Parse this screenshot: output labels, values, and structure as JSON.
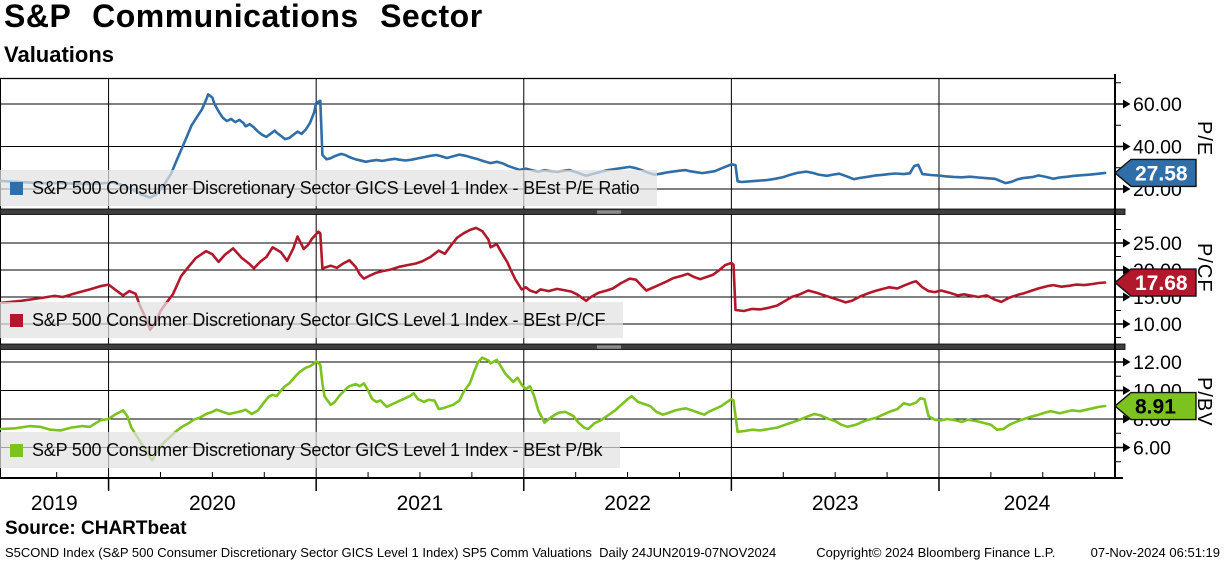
{
  "header": {
    "title": "S&P Communications Sector",
    "subtitle": "Valuations"
  },
  "x_axis": {
    "year_labels": [
      "2019",
      "2020",
      "2021",
      "2022",
      "2023",
      "2024"
    ],
    "range_label": "24JUN2019-07NOV2024"
  },
  "footer": {
    "source": "Source: CHARTbeat",
    "disclaimer": "S5COND Index (S&P 500 Consumer Discretionary Sector GICS Level 1 Index) SP5 Comm Valuations  Daily 24JUN2019-07NOV2024",
    "copyright": "Copyright© 2024 Bloomberg Finance L.P.",
    "timestamp": "07-Nov-2024 06:51:19"
  },
  "chart_data": [
    {
      "type": "line",
      "panel": "P/E",
      "legend": "S&P 500 Consumer Discretionary Sector GICS Level 1 Index - BEst P/E Ratio",
      "color": "#2f6ea9",
      "badge_text": "#ffffff",
      "last_value": 27.58,
      "last_label": "27.58",
      "ylim": [
        10,
        72
      ],
      "yticks": [
        60,
        40,
        20
      ],
      "ytick_labels": [
        "60.00",
        "40.00",
        "20.00"
      ],
      "minor_ticks": [
        70,
        50,
        30
      ],
      "x": [
        2019.48,
        2019.55,
        2019.62,
        2019.7,
        2019.77,
        2019.84,
        2019.91,
        2019.96,
        2020.02,
        2020.06,
        2020.1,
        2020.13,
        2020.16,
        2020.2,
        2020.23,
        2020.26,
        2020.3,
        2020.33,
        2020.37,
        2020.4,
        2020.43,
        2020.45,
        2020.47,
        2020.48,
        2020.5,
        2020.51,
        2020.53,
        2020.55,
        2020.57,
        2020.59,
        2020.61,
        2020.63,
        2020.65,
        2020.66,
        2020.68,
        2020.7,
        2020.72,
        2020.74,
        2020.76,
        2020.78,
        2020.8,
        2020.81,
        2020.83,
        2020.85,
        2020.87,
        2020.89,
        2020.91,
        2020.93,
        2020.95,
        2020.97,
        2020.99,
        2021.0,
        2021.02,
        2021.03,
        2021.05,
        2021.07,
        2021.09,
        2021.12,
        2021.14,
        2021.16,
        2021.19,
        2021.21,
        2021.24,
        2021.26,
        2021.29,
        2021.32,
        2021.35,
        2021.38,
        2021.4,
        2021.43,
        2021.46,
        2021.49,
        2021.52,
        2021.55,
        2021.58,
        2021.61,
        2021.63,
        2021.66,
        2021.69,
        2021.72,
        2021.75,
        2021.78,
        2021.81,
        2021.84,
        2021.87,
        2021.9,
        2021.92,
        2021.95,
        2021.98,
        2022.01,
        2022.04,
        2022.07,
        2022.1,
        2022.13,
        2022.16,
        2022.18,
        2022.22,
        2022.26,
        2022.3,
        2022.32,
        2022.36,
        2022.4,
        2022.44,
        2022.48,
        2022.51,
        2022.54,
        2022.57,
        2022.6,
        2022.63,
        2022.66,
        2022.69,
        2022.72,
        2022.75,
        2022.78,
        2022.8,
        2022.83,
        2022.86,
        2022.89,
        2022.92,
        2022.95,
        2022.98,
        2023.0,
        2023.02,
        2023.03,
        2023.05,
        2023.09,
        2023.13,
        2023.17,
        2023.21,
        2023.25,
        2023.28,
        2023.32,
        2023.36,
        2023.39,
        2023.42,
        2023.46,
        2023.49,
        2023.52,
        2023.56,
        2023.59,
        2023.62,
        2023.66,
        2023.69,
        2023.73,
        2023.76,
        2023.79,
        2023.83,
        2023.86,
        2023.88,
        2023.9,
        2023.92,
        2023.96,
        2024.0,
        2024.03,
        2024.07,
        2024.11,
        2024.15,
        2024.19,
        2024.23,
        2024.27,
        2024.29,
        2024.32,
        2024.35,
        2024.38,
        2024.41,
        2024.45,
        2024.48,
        2024.52,
        2024.55,
        2024.58,
        2024.62,
        2024.65,
        2024.69,
        2024.73,
        2024.77,
        2024.8
      ],
      "y": [
        23.8,
        23.4,
        23.0,
        22.7,
        22.9,
        22.5,
        22.3,
        22.6,
        23.2,
        22.0,
        20.5,
        19.0,
        17.3,
        16.0,
        17.5,
        21.0,
        27.0,
        34.0,
        43.0,
        50.0,
        54.5,
        57.5,
        62.0,
        64.5,
        63.0,
        60.0,
        56.5,
        53.5,
        52.0,
        53.0,
        51.5,
        52.5,
        51.0,
        49.5,
        50.5,
        49.0,
        47.0,
        45.5,
        44.5,
        46.0,
        47.5,
        46.5,
        45.0,
        43.5,
        44.0,
        45.5,
        47.0,
        46.0,
        48.0,
        51.0,
        56.0,
        60.5,
        61.5,
        36.0,
        34.0,
        34.5,
        35.5,
        36.5,
        36.0,
        35.0,
        34.0,
        33.5,
        32.8,
        33.2,
        33.6,
        33.2,
        33.8,
        34.2,
        33.8,
        33.4,
        33.8,
        34.4,
        35.0,
        35.6,
        36.0,
        35.2,
        34.6,
        35.4,
        36.2,
        35.6,
        34.8,
        34.0,
        33.0,
        32.2,
        32.8,
        32.0,
        31.0,
        30.0,
        29.0,
        29.6,
        28.8,
        28.2,
        28.8,
        28.4,
        28.0,
        28.4,
        28.9,
        27.6,
        26.2,
        26.8,
        27.8,
        28.8,
        29.4,
        30.0,
        30.4,
        29.8,
        28.8,
        27.6,
        26.8,
        27.2,
        27.8,
        28.2,
        28.6,
        28.9,
        28.4,
        27.9,
        27.5,
        27.9,
        28.4,
        29.6,
        30.8,
        31.6,
        31.2,
        23.6,
        23.3,
        23.6,
        23.9,
        24.2,
        24.8,
        25.6,
        26.6,
        27.6,
        28.2,
        27.6,
        26.8,
        26.2,
        26.8,
        27.2,
        25.8,
        24.6,
        25.2,
        25.8,
        26.3,
        26.7,
        27.0,
        27.3,
        27.0,
        27.4,
        30.8,
        31.4,
        27.0,
        26.6,
        26.3,
        26.0,
        25.7,
        25.5,
        25.8,
        25.4,
        25.1,
        24.8,
        24.0,
        22.8,
        23.4,
        24.6,
        25.2,
        25.6,
        26.4,
        25.6,
        24.8,
        25.4,
        25.8,
        26.2,
        26.5,
        26.8,
        27.2,
        27.58
      ]
    },
    {
      "type": "line",
      "panel": "P/CF",
      "legend": "S&P 500 Consumer Discretionary Sector GICS Level 1 Index - BEst P/CF",
      "color": "#b2182b",
      "badge_text": "#ffffff",
      "last_value": 17.68,
      "last_label": "17.68",
      "ylim": [
        6.3,
        30.4
      ],
      "yticks": [
        25,
        20,
        15,
        10
      ],
      "ytick_labels": [
        "25.00",
        "20.00",
        "15.00",
        "10.00"
      ],
      "minor_ticks": [
        27.5,
        22.5,
        17.5,
        12.5,
        7.5
      ],
      "x": [
        2019.48,
        2019.58,
        2019.67,
        2019.74,
        2019.78,
        2019.84,
        2019.91,
        2019.96,
        2020.0,
        2020.03,
        2020.07,
        2020.1,
        2020.13,
        2020.15,
        2020.18,
        2020.2,
        2020.23,
        2020.25,
        2020.28,
        2020.31,
        2020.35,
        2020.39,
        2020.42,
        2020.47,
        2020.5,
        2020.53,
        2020.56,
        2020.6,
        2020.64,
        2020.68,
        2020.7,
        2020.73,
        2020.76,
        2020.79,
        2020.83,
        2020.86,
        2020.89,
        2020.91,
        2020.94,
        2020.96,
        2020.98,
        2021.01,
        2021.02,
        2021.03,
        2021.07,
        2021.1,
        2021.13,
        2021.16,
        2021.19,
        2021.21,
        2021.23,
        2021.26,
        2021.29,
        2021.32,
        2021.36,
        2021.4,
        2021.44,
        2021.48,
        2021.51,
        2021.55,
        2021.59,
        2021.62,
        2021.65,
        2021.68,
        2021.71,
        2021.74,
        2021.77,
        2021.8,
        2021.83,
        2021.84,
        2021.87,
        2021.89,
        2021.92,
        2021.94,
        2021.96,
        2021.99,
        2022.01,
        2022.03,
        2022.06,
        2022.08,
        2022.12,
        2022.16,
        2022.19,
        2022.23,
        2022.26,
        2022.3,
        2022.32,
        2022.36,
        2022.4,
        2022.43,
        2022.47,
        2022.51,
        2022.54,
        2022.57,
        2022.59,
        2022.62,
        2022.65,
        2022.69,
        2022.72,
        2022.76,
        2022.79,
        2022.82,
        2022.85,
        2022.88,
        2022.91,
        2022.94,
        2022.97,
        2023.0,
        2023.01,
        2023.02,
        2023.06,
        2023.1,
        2023.14,
        2023.18,
        2023.22,
        2023.26,
        2023.29,
        2023.33,
        2023.37,
        2023.41,
        2023.44,
        2023.48,
        2023.52,
        2023.55,
        2023.58,
        2023.62,
        2023.66,
        2023.69,
        2023.73,
        2023.76,
        2023.8,
        2023.83,
        2023.87,
        2023.89,
        2023.92,
        2023.95,
        2023.98,
        2024.01,
        2024.05,
        2024.09,
        2024.12,
        2024.16,
        2024.19,
        2024.23,
        2024.27,
        2024.3,
        2024.34,
        2024.38,
        2024.41,
        2024.44,
        2024.48,
        2024.52,
        2024.55,
        2024.59,
        2024.63,
        2024.66,
        2024.7,
        2024.74,
        2024.77,
        2024.8
      ],
      "y": [
        13.9,
        14.3,
        14.8,
        15.2,
        15.0,
        15.7,
        16.4,
        17.0,
        17.3,
        16.4,
        15.3,
        16.1,
        15.6,
        13.5,
        11.0,
        8.9,
        10.5,
        12.4,
        14.0,
        15.5,
        18.9,
        20.8,
        22.2,
        23.5,
        22.9,
        21.5,
        22.8,
        24.0,
        22.3,
        21.1,
        20.3,
        21.5,
        22.4,
        24.2,
        23.3,
        21.7,
        24.0,
        26.2,
        23.9,
        24.6,
        25.8,
        27.1,
        26.8,
        20.3,
        20.8,
        20.4,
        21.2,
        21.8,
        20.6,
        19.2,
        18.4,
        19.0,
        19.5,
        19.8,
        20.1,
        20.6,
        20.9,
        21.2,
        21.6,
        22.4,
        23.6,
        23.0,
        24.6,
        26.0,
        26.8,
        27.4,
        27.8,
        27.2,
        25.6,
        24.2,
        24.8,
        23.4,
        21.5,
        19.8,
        18.2,
        16.4,
        16.8,
        16.2,
        15.8,
        16.4,
        16.1,
        16.5,
        16.3,
        16.0,
        15.4,
        14.3,
        14.9,
        15.8,
        16.2,
        16.6,
        17.6,
        18.4,
        18.2,
        17.0,
        16.2,
        16.7,
        17.2,
        17.9,
        18.5,
        18.9,
        19.3,
        18.7,
        18.3,
        18.7,
        19.1,
        19.9,
        20.9,
        21.3,
        21.0,
        12.6,
        12.4,
        12.8,
        12.7,
        13.0,
        13.4,
        14.3,
        15.0,
        15.5,
        16.2,
        15.8,
        15.4,
        14.9,
        14.4,
        14.0,
        14.3,
        15.1,
        15.7,
        16.1,
        16.5,
        16.8,
        16.6,
        17.1,
        17.7,
        17.9,
        16.8,
        16.1,
        15.9,
        16.2,
        15.8,
        15.3,
        15.5,
        15.2,
        15.0,
        15.3,
        14.5,
        14.1,
        14.9,
        15.4,
        15.7,
        16.1,
        16.6,
        17.0,
        17.2,
        16.9,
        17.1,
        17.3,
        17.2,
        17.4,
        17.6,
        17.68
      ]
    },
    {
      "type": "line",
      "panel": "P/BV",
      "legend": "S&P 500 Consumer Discretionary Sector GICS Level 1 Index - BEst P/Bk",
      "color": "#7cc31f",
      "badge_text": "#000000",
      "last_value": 8.91,
      "last_label": "8.91",
      "ylim": [
        3.9,
        12.9
      ],
      "yticks": [
        12,
        10,
        8,
        6
      ],
      "ytick_labels": [
        "12.00",
        "10.00",
        "8.00",
        "6.00"
      ],
      "minor_ticks": [
        11,
        9,
        7,
        5
      ],
      "x": [
        2019.48,
        2019.55,
        2019.62,
        2019.67,
        2019.72,
        2019.77,
        2019.82,
        2019.87,
        2019.91,
        2019.96,
        2020.0,
        2020.03,
        2020.07,
        2020.09,
        2020.11,
        2020.14,
        2020.17,
        2020.2,
        2020.21,
        2020.24,
        2020.27,
        2020.3,
        2020.33,
        2020.36,
        2020.39,
        2020.41,
        2020.44,
        2020.47,
        2020.5,
        2020.52,
        2020.55,
        2020.58,
        2020.61,
        2020.64,
        2020.66,
        2020.69,
        2020.72,
        2020.74,
        2020.77,
        2020.79,
        2020.81,
        2020.83,
        2020.85,
        2020.87,
        2020.9,
        2020.92,
        2020.95,
        2020.97,
        2020.99,
        2021.0,
        2021.02,
        2021.03,
        2021.04,
        2021.07,
        2021.09,
        2021.11,
        2021.13,
        2021.15,
        2021.16,
        2021.19,
        2021.21,
        2021.23,
        2021.25,
        2021.27,
        2021.29,
        2021.31,
        2021.34,
        2021.36,
        2021.39,
        2021.42,
        2021.45,
        2021.47,
        2021.49,
        2021.52,
        2021.54,
        2021.57,
        2021.59,
        2021.61,
        2021.64,
        2021.66,
        2021.69,
        2021.71,
        2021.74,
        2021.76,
        2021.78,
        2021.8,
        2021.83,
        2021.84,
        2021.87,
        2021.89,
        2021.91,
        2021.93,
        2021.95,
        2021.97,
        2021.99,
        2022.01,
        2022.03,
        2022.05,
        2022.07,
        2022.1,
        2022.12,
        2022.15,
        2022.17,
        2022.2,
        2022.24,
        2022.26,
        2022.29,
        2022.31,
        2022.34,
        2022.37,
        2022.4,
        2022.44,
        2022.47,
        2022.5,
        2022.52,
        2022.55,
        2022.58,
        2022.61,
        2022.64,
        2022.67,
        2022.7,
        2022.73,
        2022.76,
        2022.78,
        2022.81,
        2022.84,
        2022.87,
        2022.89,
        2022.92,
        2022.95,
        2022.98,
        2023.0,
        2023.01,
        2023.03,
        2023.06,
        2023.1,
        2023.14,
        2023.18,
        2023.22,
        2023.26,
        2023.29,
        2023.33,
        2023.37,
        2023.4,
        2023.43,
        2023.46,
        2023.5,
        2023.53,
        2023.56,
        2023.6,
        2023.63,
        2023.66,
        2023.7,
        2023.73,
        2023.76,
        2023.8,
        2023.83,
        2023.86,
        2023.89,
        2023.91,
        2023.93,
        2023.95,
        2023.98,
        2024.01,
        2024.04,
        2024.08,
        2024.11,
        2024.14,
        2024.18,
        2024.21,
        2024.25,
        2024.28,
        2024.31,
        2024.34,
        2024.38,
        2024.41,
        2024.44,
        2024.48,
        2024.51,
        2024.54,
        2024.58,
        2024.61,
        2024.64,
        2024.68,
        2024.71,
        2024.74,
        2024.77,
        2024.8
      ],
      "y": [
        7.3,
        7.35,
        7.5,
        7.45,
        7.25,
        7.2,
        7.4,
        7.5,
        7.45,
        7.9,
        8.0,
        8.3,
        8.6,
        8.2,
        7.4,
        6.7,
        6.0,
        5.3,
        5.1,
        5.9,
        6.4,
        6.8,
        7.2,
        7.5,
        7.75,
        7.95,
        8.1,
        8.35,
        8.5,
        8.65,
        8.5,
        8.35,
        8.45,
        8.55,
        8.65,
        8.35,
        8.6,
        9.0,
        9.55,
        9.7,
        9.6,
        10.0,
        10.3,
        10.5,
        11.0,
        11.3,
        11.6,
        11.7,
        11.9,
        12.05,
        11.8,
        10.5,
        9.6,
        9.0,
        9.2,
        9.6,
        9.9,
        10.2,
        10.3,
        10.45,
        10.3,
        10.5,
        10.0,
        9.4,
        9.2,
        9.3,
        8.85,
        9.0,
        9.2,
        9.4,
        9.6,
        9.8,
        9.4,
        9.2,
        9.35,
        9.3,
        8.7,
        8.75,
        8.9,
        9.0,
        9.3,
        9.9,
        10.5,
        11.3,
        12.0,
        12.3,
        12.1,
        11.9,
        12.15,
        11.7,
        11.2,
        10.9,
        10.6,
        10.9,
        10.4,
        10.1,
        10.3,
        9.6,
        8.6,
        7.75,
        8.0,
        8.3,
        8.45,
        8.5,
        8.2,
        7.8,
        7.4,
        7.3,
        7.7,
        7.9,
        8.2,
        8.6,
        9.0,
        9.4,
        9.6,
        9.2,
        9.05,
        8.9,
        8.5,
        8.3,
        8.45,
        8.6,
        8.7,
        8.75,
        8.6,
        8.45,
        8.3,
        8.5,
        8.7,
        8.9,
        9.2,
        9.4,
        9.3,
        7.1,
        7.15,
        7.25,
        7.2,
        7.3,
        7.4,
        7.6,
        7.75,
        7.95,
        8.2,
        8.35,
        8.25,
        8.05,
        7.85,
        7.6,
        7.45,
        7.6,
        7.8,
        7.95,
        8.1,
        8.3,
        8.5,
        8.7,
        9.1,
        9.0,
        9.15,
        9.45,
        9.4,
        8.2,
        7.95,
        7.9,
        8.0,
        7.9,
        7.8,
        7.95,
        7.85,
        7.75,
        7.6,
        7.25,
        7.3,
        7.6,
        7.85,
        8.0,
        8.15,
        8.3,
        8.45,
        8.55,
        8.4,
        8.5,
        8.6,
        8.55,
        8.65,
        8.75,
        8.85,
        8.91
      ]
    }
  ]
}
